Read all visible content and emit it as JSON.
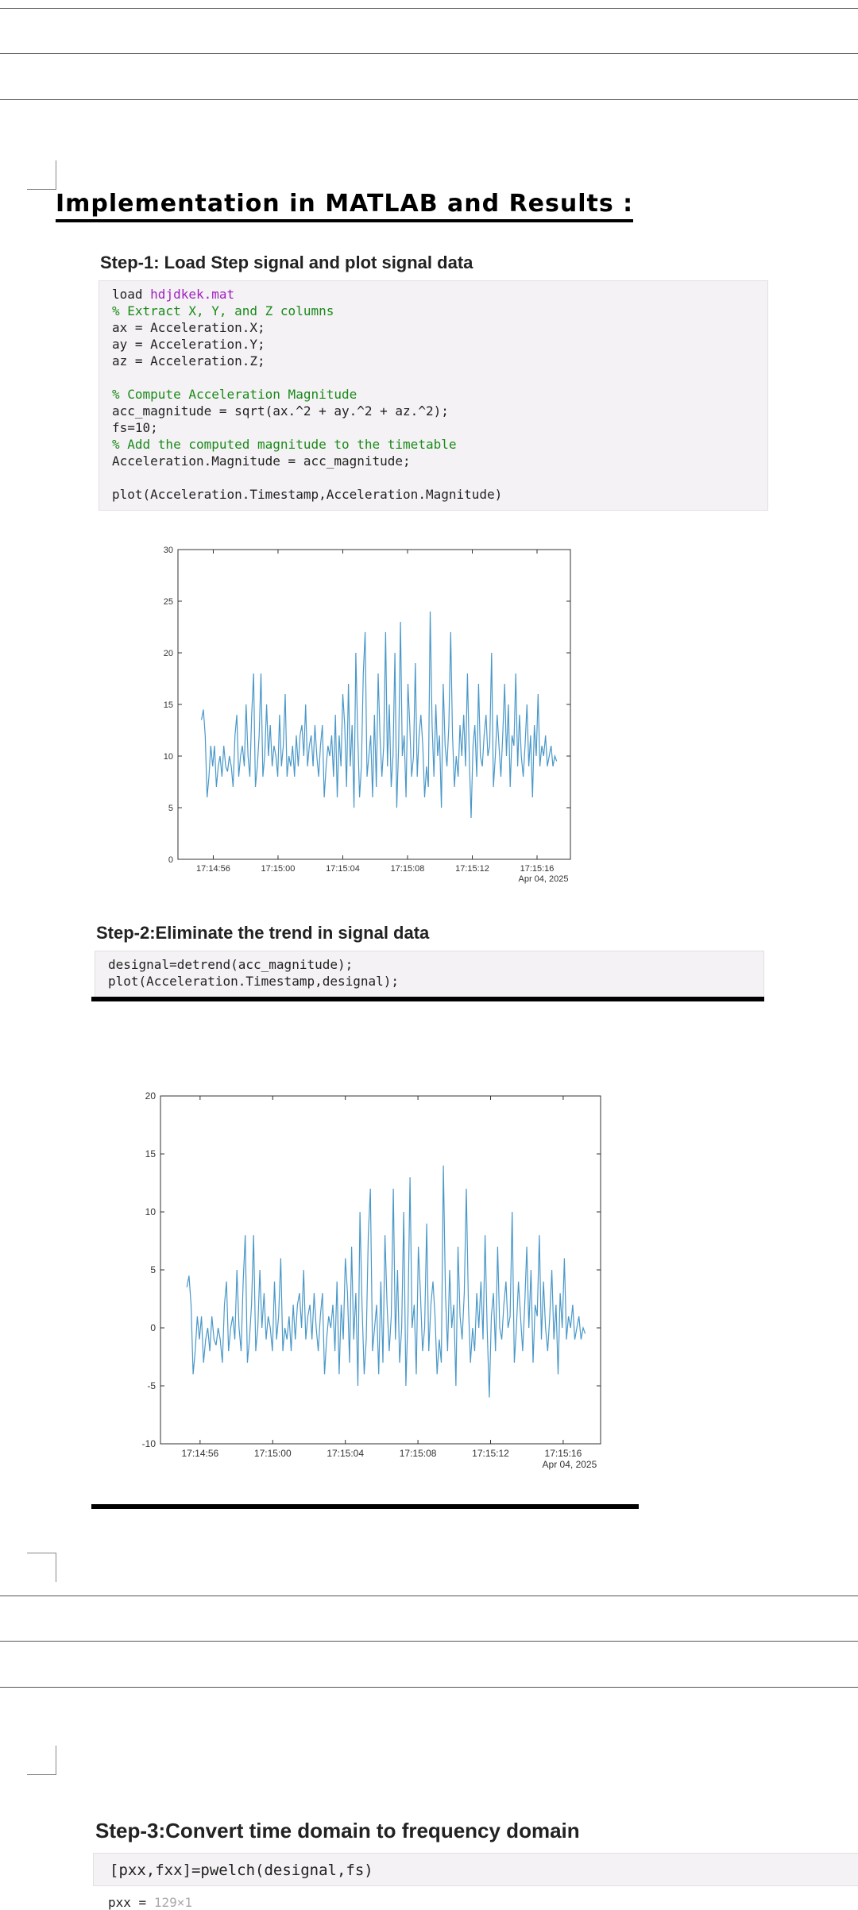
{
  "heading": "Implementation in MATLAB and Results :",
  "step1": {
    "title": "Step-1: Load Step signal and plot signal data",
    "code": [
      {
        "t": "load ",
        "s": "hdjdkek.mat"
      },
      {
        "c": "% Extract X, Y, and Z columns"
      },
      {
        "t": "ax = Acceleration.X;"
      },
      {
        "t": "ay = Acceleration.Y;"
      },
      {
        "t": "az = Acceleration.Z;"
      },
      {
        "t": ""
      },
      {
        "c": "% Compute Acceleration Magnitude"
      },
      {
        "t": "acc_magnitude = sqrt(ax.^2 + ay.^2 + az.^2);"
      },
      {
        "t": "fs=10;"
      },
      {
        "c": "% Add the computed magnitude to the timetable"
      },
      {
        "t": "Acceleration.Magnitude = acc_magnitude;"
      },
      {
        "t": ""
      },
      {
        "t": "plot(Acceleration.Timestamp,Acceleration.Magnitude)"
      }
    ]
  },
  "step2": {
    "title": "Step-2:Eliminate the trend in signal data",
    "code": [
      {
        "t": "designal=detrend(acc_magnitude);"
      },
      {
        "t": "plot(Acceleration.Timestamp,designal);"
      }
    ]
  },
  "step3": {
    "title": "Step-3:Convert time domain to frequency domain",
    "code": [
      {
        "t": "[pxx,fxx]=pwelch(designal,fs)"
      }
    ],
    "output_var": "pxx =",
    "output_size": "129×1"
  },
  "chart_data": [
    {
      "type": "line",
      "x_tick_labels": [
        "17:14:56",
        "17:15:00",
        "17:15:04",
        "17:15:08",
        "17:15:12",
        "17:15:16"
      ],
      "x_sub_label": "Apr 04, 2025",
      "ylim": [
        0,
        30
      ],
      "y_ticks": [
        0,
        5,
        10,
        15,
        20,
        25,
        30
      ],
      "line_color": "#4a98c8",
      "series": [
        {
          "values": [
            13.5,
            14.5,
            12,
            6,
            8,
            11,
            9,
            11,
            7,
            9,
            10,
            8,
            11,
            9,
            8.5,
            10,
            9,
            7,
            12,
            14,
            8,
            10,
            11,
            9,
            15,
            10,
            8,
            14,
            18,
            7,
            9,
            12,
            18,
            8,
            10,
            15,
            10,
            13,
            9,
            11,
            10,
            8,
            14,
            9,
            11,
            16,
            8,
            10,
            9,
            11,
            8,
            12,
            9,
            12,
            13,
            10,
            15,
            9,
            11,
            12,
            9,
            13,
            10,
            8,
            11,
            13,
            6,
            9,
            11,
            10,
            12,
            8,
            14,
            6,
            12,
            9,
            16,
            13,
            7,
            17,
            9,
            13,
            5,
            20,
            12,
            6,
            9,
            18,
            22,
            8,
            10,
            12,
            6,
            14,
            7,
            18,
            12,
            8,
            11,
            22,
            9,
            15,
            7,
            10,
            20,
            5,
            11,
            23,
            10,
            12,
            6,
            17,
            13,
            8,
            10,
            19,
            8,
            12,
            14,
            11,
            6,
            9,
            7,
            24,
            13,
            8,
            15,
            10,
            12,
            5,
            17,
            11,
            9,
            13,
            22,
            12,
            7,
            10,
            8,
            13,
            10,
            14,
            9,
            18,
            10,
            4,
            11,
            13,
            8,
            17,
            10,
            9,
            12,
            14,
            10,
            11,
            20,
            7,
            10,
            14,
            11,
            8,
            12,
            17,
            10,
            15,
            7,
            12,
            11,
            18,
            9,
            14,
            10,
            8,
            11,
            15,
            9,
            12,
            6,
            13,
            10,
            16,
            9,
            11,
            10,
            12,
            9,
            10,
            11,
            9,
            10,
            9.5
          ]
        }
      ]
    },
    {
      "type": "line",
      "x_tick_labels": [
        "17:14:56",
        "17:15:00",
        "17:15:04",
        "17:15:08",
        "17:15:12",
        "17:15:16"
      ],
      "x_sub_label": "Apr 04, 2025",
      "ylim": [
        -10,
        20
      ],
      "y_ticks": [
        -10,
        -5,
        0,
        5,
        10,
        15,
        20
      ],
      "line_color": "#4a98c8",
      "series": [
        {
          "values": [
            3.5,
            4.5,
            2,
            -4,
            -2,
            1,
            -1,
            1,
            -3,
            -1,
            0,
            -2,
            1,
            -1,
            -1.5,
            0,
            -1,
            -3,
            2,
            4,
            -2,
            0,
            1,
            -1,
            5,
            0,
            -2,
            4,
            8,
            -3,
            -1,
            2,
            8,
            -2,
            0,
            5,
            0,
            3,
            -1,
            1,
            0,
            -2,
            4,
            -1,
            1,
            6,
            -2,
            0,
            -1,
            1,
            -2,
            2,
            -1,
            2,
            3,
            0,
            5,
            -1,
            1,
            2,
            -1,
            3,
            0,
            -2,
            1,
            3,
            -4,
            -1,
            1,
            0,
            2,
            -2,
            4,
            -4,
            2,
            -1,
            6,
            3,
            -3,
            7,
            -1,
            3,
            -5,
            10,
            2,
            -4,
            -1,
            8,
            12,
            -2,
            0,
            2,
            -4,
            4,
            -3,
            8,
            2,
            -2,
            1,
            12,
            -1,
            5,
            -3,
            0,
            10,
            -5,
            1,
            13,
            0,
            2,
            -4,
            7,
            3,
            -2,
            0,
            9,
            -2,
            2,
            4,
            1,
            -4,
            -1,
            -3,
            14,
            3,
            -2,
            5,
            0,
            2,
            -5,
            7,
            1,
            -1,
            3,
            12,
            2,
            -3,
            0,
            -2,
            3,
            0,
            4,
            -1,
            8,
            0,
            -6,
            1,
            3,
            -2,
            7,
            0,
            -1,
            2,
            4,
            0,
            1,
            10,
            -3,
            0,
            4,
            1,
            -2,
            2,
            7,
            0,
            5,
            -3,
            2,
            1,
            8,
            -1,
            4,
            0,
            -2,
            1,
            5,
            -1,
            2,
            -4,
            3,
            0,
            6,
            -1,
            1,
            0,
            2,
            -1,
            0,
            1,
            -1,
            0,
            -0.5
          ]
        }
      ]
    }
  ]
}
